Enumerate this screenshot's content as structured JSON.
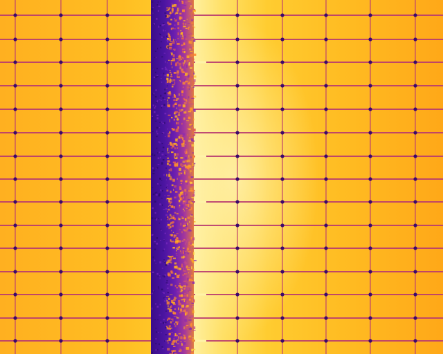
{
  "image": {
    "kind": "thermal-infrared",
    "subject": "solar-panel-array",
    "palette": {
      "hot_peak": "#fff2a8",
      "hot": "#ffd23a",
      "warm": "#ffb21a",
      "mid": "#ff9a10",
      "cool": "#d23a6a",
      "cold": "#5b1aa8",
      "coldest": "#2a0a6a"
    },
    "grid": {
      "columns": 10,
      "rows": 15
    }
  }
}
